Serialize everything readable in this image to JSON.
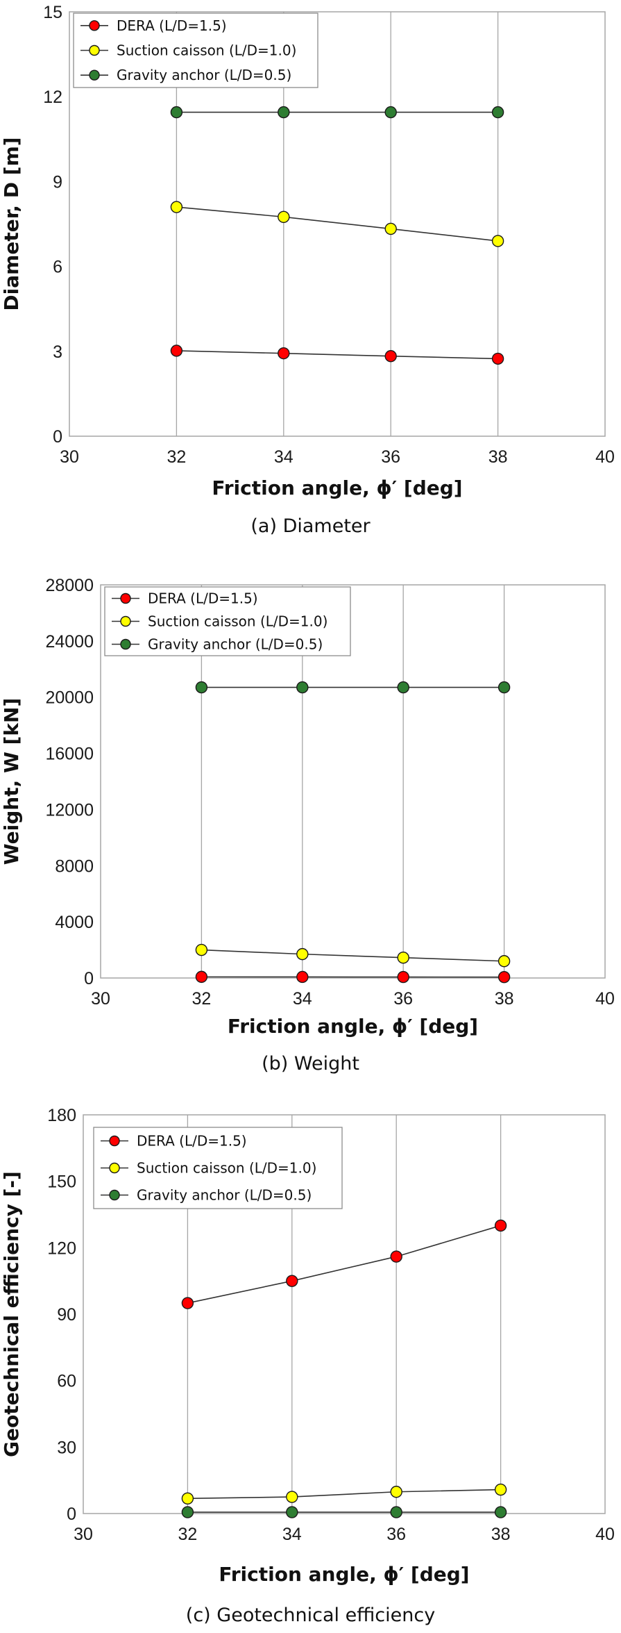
{
  "chart_data": [
    {
      "type": "line",
      "caption": "(a)  Diameter",
      "xlabel": "Friction angle, ϕ′ [deg]",
      "ylabel": "Diameter, D [m]",
      "xlim": [
        30,
        40
      ],
      "ylim": [
        0,
        15
      ],
      "xticks": [
        30,
        32,
        34,
        36,
        38,
        40
      ],
      "yticks": [
        0,
        3,
        6,
        9,
        12,
        15
      ],
      "grid": "vertical",
      "legend": "top-left",
      "x": [
        32,
        34,
        36,
        38
      ],
      "series": [
        {
          "name": "DERA (L/D=1.5)",
          "color": "#ff0000",
          "values": [
            3.02,
            2.93,
            2.83,
            2.74
          ]
        },
        {
          "name": "Suction caisson (L/D=1.0)",
          "color": "#ffff00",
          "values": [
            8.1,
            7.75,
            7.33,
            6.9
          ]
        },
        {
          "name": "Gravity anchor (L/D=0.5)",
          "color": "#2e7d32",
          "values": [
            11.45,
            11.45,
            11.45,
            11.45
          ]
        }
      ]
    },
    {
      "type": "line",
      "caption": "(b)  Weight",
      "xlabel": "Friction angle, ϕ′ [deg]",
      "ylabel": "Weight, W [kN]",
      "xlim": [
        30,
        40
      ],
      "ylim": [
        0,
        28000
      ],
      "xticks": [
        30,
        32,
        34,
        36,
        38,
        40
      ],
      "yticks": [
        0,
        4000,
        8000,
        12000,
        16000,
        20000,
        24000,
        28000
      ],
      "grid": "vertical",
      "legend": "top-left",
      "x": [
        32,
        34,
        36,
        38
      ],
      "series": [
        {
          "name": "DERA (L/D=1.5)",
          "color": "#ff0000",
          "values": [
            80,
            75,
            70,
            65
          ]
        },
        {
          "name": "Suction caisson (L/D=1.0)",
          "color": "#ffff00",
          "values": [
            2000,
            1700,
            1450,
            1200
          ]
        },
        {
          "name": "Gravity anchor (L/D=0.5)",
          "color": "#2e7d32",
          "values": [
            20700,
            20700,
            20700,
            20700
          ]
        }
      ]
    },
    {
      "type": "line",
      "caption": "(c)  Geotechnical  efficiency",
      "xlabel": "Friction angle, ϕ′ [deg]",
      "ylabel": "Geotechnical efficiency [-]",
      "xlim": [
        30,
        40
      ],
      "ylim": [
        0,
        180
      ],
      "xticks": [
        30,
        32,
        34,
        36,
        38,
        40
      ],
      "yticks": [
        0,
        30,
        60,
        90,
        120,
        150,
        180
      ],
      "grid": "vertical",
      "legend": "top-left",
      "x": [
        32,
        34,
        36,
        38
      ],
      "series": [
        {
          "name": "DERA (L/D=1.5)",
          "color": "#ff0000",
          "values": [
            95,
            105,
            116,
            130
          ]
        },
        {
          "name": "Suction caisson (L/D=1.0)",
          "color": "#ffff00",
          "values": [
            6.8,
            7.5,
            9.8,
            10.8
          ]
        },
        {
          "name": "Gravity anchor (L/D=0.5)",
          "color": "#2e7d32",
          "values": [
            0.6,
            0.6,
            0.6,
            0.6
          ]
        }
      ]
    }
  ]
}
